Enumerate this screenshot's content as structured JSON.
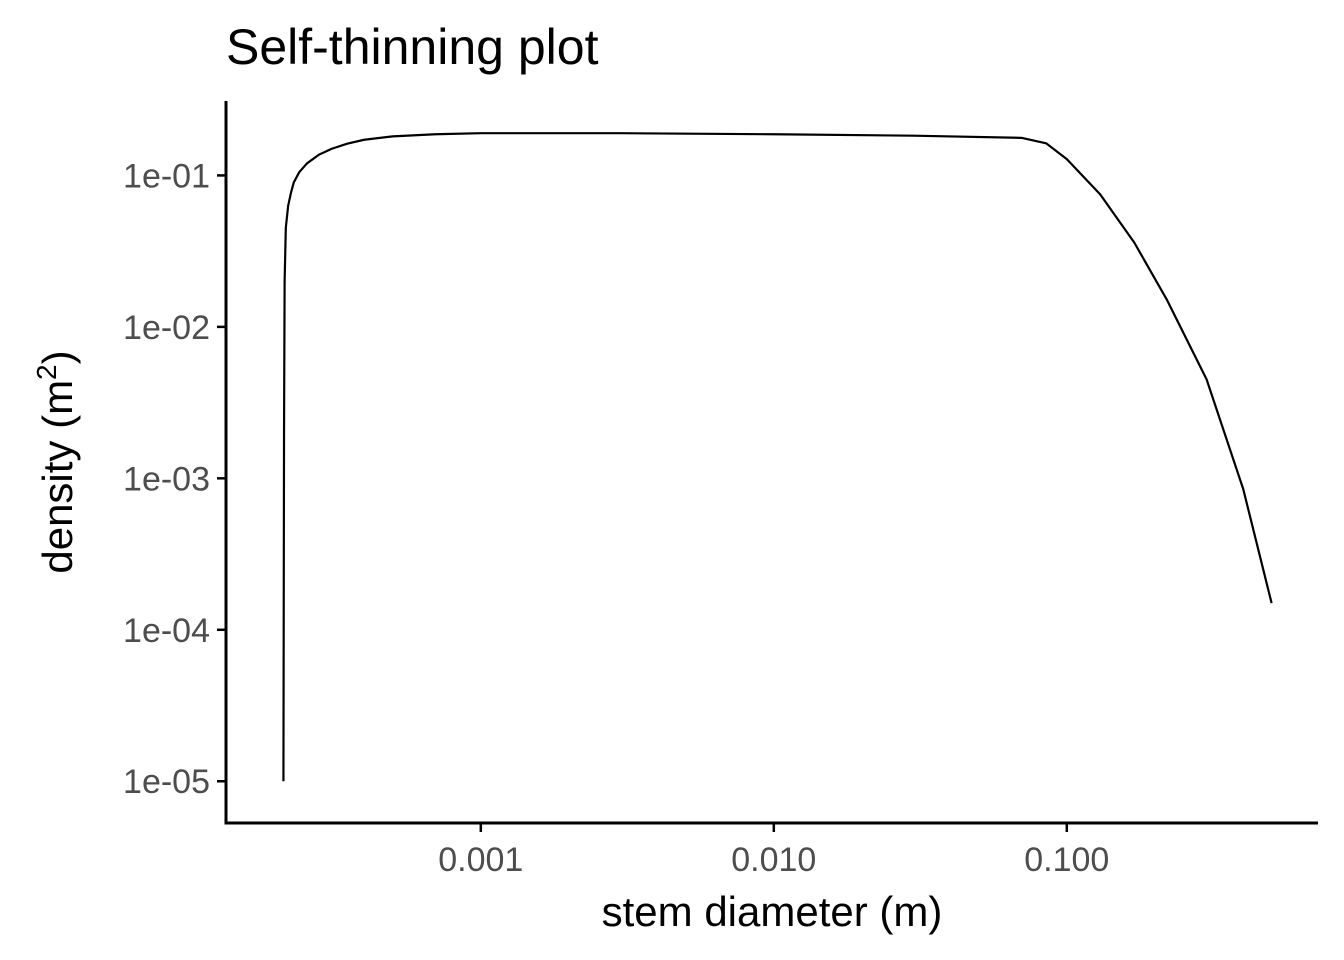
{
  "chart_data": {
    "type": "line",
    "title": "Self-thinning plot",
    "xlabel": "stem diameter (m)",
    "ylabel_main": "density  (m",
    "ylabel_sup": "2",
    "ylabel_close": ")",
    "x_scale": "log10",
    "y_scale": "log10",
    "xlim": [
      0.000135,
      0.72
    ],
    "ylim": [
      5.3e-06,
      0.31
    ],
    "x_ticks": [
      0.001,
      0.01,
      0.1
    ],
    "x_tick_labels": [
      "0.001",
      "0.010",
      "0.100"
    ],
    "y_ticks": [
      1e-05,
      0.0001,
      0.001,
      0.01,
      0.1
    ],
    "y_tick_labels": [
      "1e-05",
      "1e-04",
      "1e-03",
      "1e-02",
      "1e-01"
    ],
    "grid": false,
    "legend": "none",
    "line_color": "#000000",
    "series": [
      {
        "x": [
          0.000212,
          0.000213,
          0.000214,
          0.000216,
          0.00022,
          0.000225,
          0.00023,
          0.00024,
          0.000255,
          0.00028,
          0.00031,
          0.00035,
          0.0004,
          0.0005,
          0.0007,
          0.001,
          0.003,
          0.01,
          0.03,
          0.07,
          0.085,
          0.1,
          0.13,
          0.17,
          0.22,
          0.3,
          0.4,
          0.5
        ],
        "y": [
          1e-05,
          0.002,
          0.02,
          0.045,
          0.063,
          0.077,
          0.09,
          0.105,
          0.12,
          0.137,
          0.15,
          0.162,
          0.172,
          0.181,
          0.187,
          0.19,
          0.19,
          0.187,
          0.183,
          0.177,
          0.163,
          0.128,
          0.075,
          0.036,
          0.015,
          0.0045,
          0.00085,
          0.00015
        ]
      }
    ]
  }
}
